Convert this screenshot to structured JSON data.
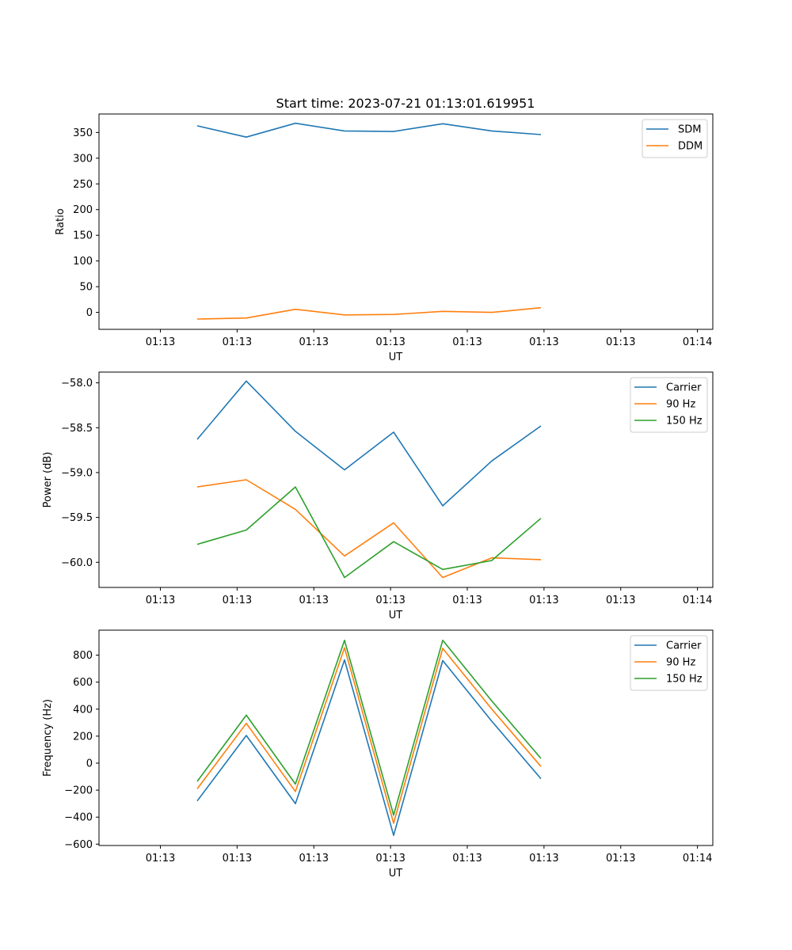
{
  "figure_title": "Start time: 2023-07-21 01:13:01.619951",
  "chart_data": [
    {
      "type": "line",
      "title": "Start time: 2023-07-21 01:13:01.619951",
      "xlabel": "UT",
      "ylabel": "Ratio",
      "xlim": [
        -0.2,
        1.8
      ],
      "ylim": [
        -33,
        386
      ],
      "x_ticks": [
        0,
        0.25,
        0.5,
        0.75,
        1.0,
        1.25,
        1.5,
        1.75
      ],
      "x_tick_labels": [
        "01:13",
        "01:13",
        "01:13",
        "01:13",
        "01:13",
        "01:13",
        "01:13",
        "01:14"
      ],
      "y_ticks": [
        0,
        50,
        100,
        150,
        200,
        250,
        300,
        350
      ],
      "y_tick_labels": [
        "0",
        "50",
        "100",
        "150",
        "200",
        "250",
        "300",
        "350"
      ],
      "legend_position": "top-right",
      "x": [
        0.12,
        0.28,
        0.44,
        0.6,
        0.76,
        0.92,
        1.08,
        1.24
      ],
      "series": [
        {
          "name": "SDM",
          "color": "#1f77b4",
          "values": [
            363,
            341,
            368,
            353,
            352,
            367,
            353,
            346
          ]
        },
        {
          "name": "DDM",
          "color": "#ff7f0e",
          "values": [
            -13,
            -11,
            6,
            -5,
            -4,
            2,
            0,
            9
          ]
        }
      ]
    },
    {
      "type": "line",
      "title": "",
      "xlabel": "UT",
      "ylabel": "Power (dB)",
      "xlim": [
        -0.2,
        1.8
      ],
      "ylim": [
        -60.28,
        -57.88
      ],
      "x_ticks": [
        0,
        0.25,
        0.5,
        0.75,
        1.0,
        1.25,
        1.5,
        1.75
      ],
      "x_tick_labels": [
        "01:13",
        "01:13",
        "01:13",
        "01:13",
        "01:13",
        "01:13",
        "01:13",
        "01:14"
      ],
      "y_ticks": [
        -58.0,
        -58.5,
        -59.0,
        -59.5,
        -60.0
      ],
      "y_tick_labels": [
        "−58.0",
        "−58.5",
        "−59.0",
        "−59.5",
        "−60.0"
      ],
      "legend_position": "top-right",
      "x": [
        0.12,
        0.28,
        0.44,
        0.6,
        0.76,
        0.92,
        1.08,
        1.24
      ],
      "series": [
        {
          "name": "Carrier",
          "color": "#1f77b4",
          "values": [
            -58.63,
            -57.98,
            -58.54,
            -58.97,
            -58.55,
            -59.37,
            -58.87,
            -58.48
          ]
        },
        {
          "name": "90 Hz",
          "color": "#ff7f0e",
          "values": [
            -59.16,
            -59.08,
            -59.41,
            -59.93,
            -59.56,
            -60.17,
            -59.95,
            -59.97
          ]
        },
        {
          "name": "150 Hz",
          "color": "#2ca02c",
          "values": [
            -59.8,
            -59.64,
            -59.16,
            -60.17,
            -59.77,
            -60.08,
            -59.98,
            -59.51
          ]
        }
      ]
    },
    {
      "type": "line",
      "title": "",
      "xlabel": "UT",
      "ylabel": "Frequency (Hz)",
      "xlim": [
        -0.2,
        1.8
      ],
      "ylim": [
        -610,
        985
      ],
      "x_ticks": [
        0,
        0.25,
        0.5,
        0.75,
        1.0,
        1.25,
        1.5,
        1.75
      ],
      "x_tick_labels": [
        "01:13",
        "01:13",
        "01:13",
        "01:13",
        "01:13",
        "01:13",
        "01:13",
        "01:14"
      ],
      "y_ticks": [
        -600,
        -400,
        -200,
        0,
        200,
        400,
        600,
        800
      ],
      "y_tick_labels": [
        "−600",
        "−400",
        "−200",
        "0",
        "200",
        "400",
        "600",
        "800"
      ],
      "legend_position": "top-right",
      "x": [
        0.12,
        0.28,
        0.44,
        0.6,
        0.76,
        0.92,
        1.08,
        1.24
      ],
      "series": [
        {
          "name": "Carrier",
          "color": "#1f77b4",
          "values": [
            -280,
            205,
            -300,
            765,
            -535,
            760,
            310,
            -115
          ]
        },
        {
          "name": "90 Hz",
          "color": "#ff7f0e",
          "values": [
            -190,
            295,
            -210,
            855,
            -445,
            850,
            400,
            -25
          ]
        },
        {
          "name": "150 Hz",
          "color": "#2ca02c",
          "values": [
            -135,
            355,
            -155,
            910,
            -385,
            910,
            460,
            35
          ]
        }
      ]
    }
  ]
}
